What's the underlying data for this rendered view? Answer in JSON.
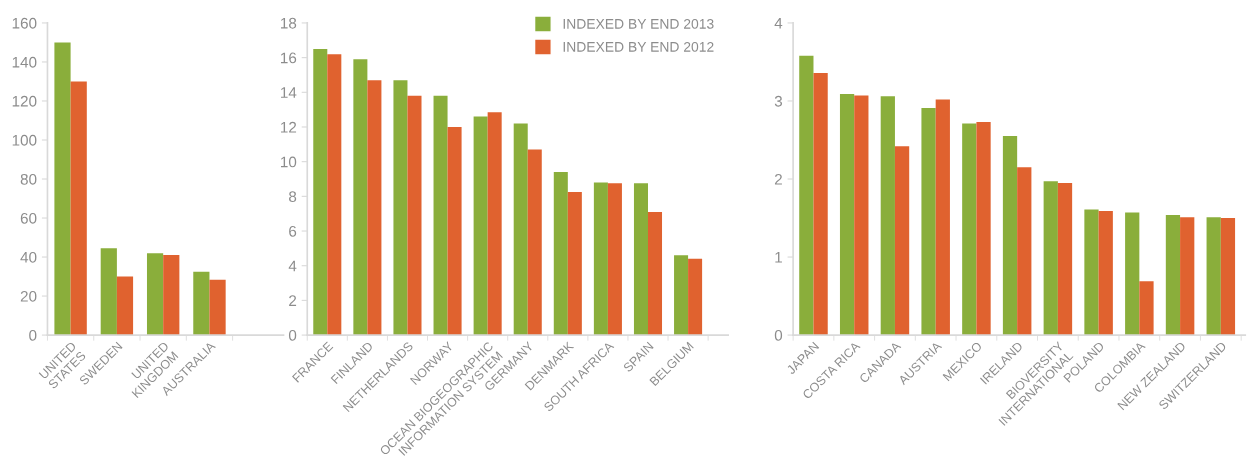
{
  "chart_data": [
    {
      "type": "bar",
      "categories": [
        "UNITED\nSTATES",
        "SWEDEN",
        "UNITED\nKINGDOM",
        "AUSTRALIA"
      ],
      "ylim": [
        0,
        160
      ],
      "yticks": [
        0,
        20,
        40,
        60,
        80,
        100,
        120,
        140,
        160
      ],
      "grid": false,
      "legend": false,
      "series": [
        {
          "color": "#8aae3b",
          "values": [
            150,
            44.5,
            42,
            32.4
          ]
        },
        {
          "color": "#e0622f",
          "values": [
            130,
            30,
            41,
            28.4
          ]
        }
      ]
    },
    {
      "type": "bar",
      "categories": [
        "FRANCE",
        "FINLAND",
        "NETHERLANDS",
        "NORWAY",
        "OCEAN BIOGEOGRAPHIC\nINFORMATION SYSTEM",
        "GERMANY",
        "DENMARK",
        "SOUTH AFRICA",
        "SPAIN",
        "BELGIUM"
      ],
      "ylim": [
        0,
        18
      ],
      "yticks": [
        0,
        2,
        4,
        6,
        8,
        10,
        12,
        14,
        16,
        18
      ],
      "grid": false,
      "legend": "top right",
      "series": [
        {
          "name": "INDEXED BY END 2013",
          "color": "#8aae3b",
          "values": [
            16.5,
            15.9,
            14.7,
            13.8,
            12.6,
            12.2,
            9.4,
            8.8,
            8.75,
            4.6
          ]
        },
        {
          "name": "INDEXED BY END 2012",
          "color": "#e0622f",
          "values": [
            16.2,
            14.7,
            13.8,
            12.0,
            12.85,
            10.7,
            8.25,
            8.75,
            7.1,
            4.4
          ]
        }
      ]
    },
    {
      "type": "bar",
      "categories": [
        "JAPAN",
        "COSTA RICA",
        "CANADA",
        "AUSTRIA",
        "MEXICO",
        "IRELAND",
        "BIOVERSITY\nINTERNATIONAL",
        "POLAND",
        "COLOMBIA",
        "NEW ZEALAND",
        "SWITZERLAND"
      ],
      "ylim": [
        0,
        4
      ],
      "yticks": [
        0,
        1,
        2,
        3,
        4
      ],
      "grid": false,
      "legend": false,
      "series": [
        {
          "color": "#8aae3b",
          "values": [
            3.58,
            3.09,
            3.06,
            2.91,
            2.71,
            2.55,
            1.97,
            1.61,
            1.57,
            1.54,
            1.51
          ]
        },
        {
          "color": "#e0622f",
          "values": [
            3.36,
            3.07,
            2.42,
            3.02,
            2.73,
            2.15,
            1.95,
            1.59,
            0.69,
            1.51,
            1.5
          ]
        }
      ]
    }
  ]
}
